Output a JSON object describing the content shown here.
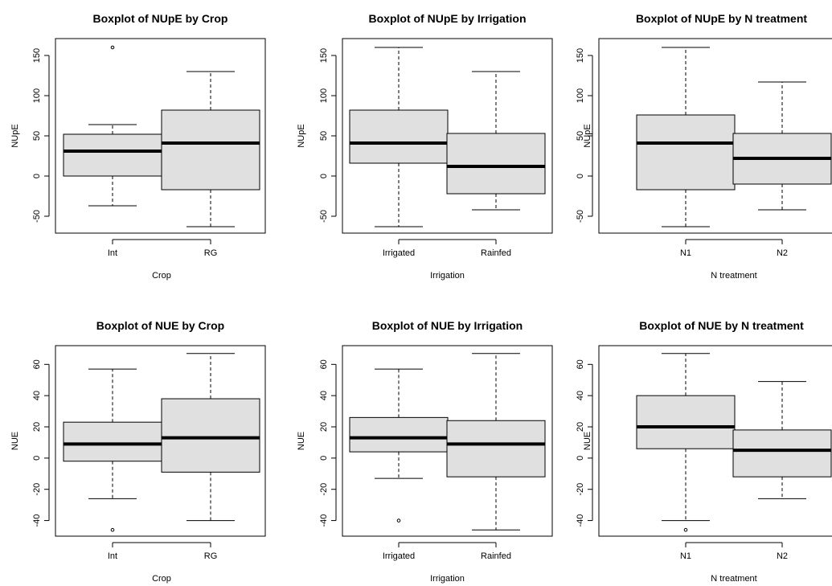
{
  "chart_data": [
    {
      "type": "boxplot",
      "title": "Boxplot of NUpE by Crop",
      "xlabel": "Crop",
      "ylabel": "NUpE",
      "ylim": [
        -71,
        171
      ],
      "yticks": [
        -50,
        0,
        50,
        100,
        150
      ],
      "categories": [
        "Int",
        "RG"
      ],
      "boxes": [
        {
          "lower_whisker": -37,
          "q1": 0,
          "median": 31,
          "q3": 52,
          "upper_whisker": 64,
          "outliers": [
            160
          ]
        },
        {
          "lower_whisker": -63,
          "q1": -17,
          "median": 41,
          "q3": 82,
          "upper_whisker": 130,
          "outliers": []
        }
      ]
    },
    {
      "type": "boxplot",
      "title": "Boxplot of NUpE by Irrigation",
      "xlabel": "Irrigation",
      "ylabel": "NUpE",
      "ylim": [
        -71,
        171
      ],
      "yticks": [
        -50,
        0,
        50,
        100,
        150
      ],
      "categories": [
        "Irrigated",
        "Rainfed"
      ],
      "boxes": [
        {
          "lower_whisker": -63,
          "q1": 16,
          "median": 41,
          "q3": 82,
          "upper_whisker": 160,
          "outliers": []
        },
        {
          "lower_whisker": -42,
          "q1": -22,
          "median": 12,
          "q3": 53,
          "upper_whisker": 130,
          "outliers": []
        }
      ]
    },
    {
      "type": "boxplot",
      "title": "Boxplot of NUpE by N treatment",
      "xlabel": "N treatment",
      "ylabel": "NUpE",
      "ylim": [
        -71,
        171
      ],
      "yticks": [
        -50,
        0,
        50,
        100,
        150
      ],
      "categories": [
        "N1",
        "N2"
      ],
      "boxes": [
        {
          "lower_whisker": -63,
          "q1": -17,
          "median": 41,
          "q3": 76,
          "upper_whisker": 160,
          "outliers": []
        },
        {
          "lower_whisker": -42,
          "q1": -10,
          "median": 22,
          "q3": 53,
          "upper_whisker": 117,
          "outliers": []
        }
      ]
    },
    {
      "type": "boxplot",
      "title": "Boxplot of NUE by Crop",
      "xlabel": "Crop",
      "ylabel": "NUE",
      "ylim": [
        -50,
        72
      ],
      "yticks": [
        -40,
        -20,
        0,
        20,
        40,
        60
      ],
      "categories": [
        "Int",
        "RG"
      ],
      "boxes": [
        {
          "lower_whisker": -26,
          "q1": -2,
          "median": 9,
          "q3": 23,
          "upper_whisker": 57,
          "outliers": [
            -46
          ]
        },
        {
          "lower_whisker": -40,
          "q1": -9,
          "median": 13,
          "q3": 38,
          "upper_whisker": 67,
          "outliers": []
        }
      ]
    },
    {
      "type": "boxplot",
      "title": "Boxplot of NUE by Irrigation",
      "xlabel": "Irrigation",
      "ylabel": "NUE",
      "ylim": [
        -50,
        72
      ],
      "yticks": [
        -40,
        -20,
        0,
        20,
        40,
        60
      ],
      "categories": [
        "Irrigated",
        "Rainfed"
      ],
      "boxes": [
        {
          "lower_whisker": -13,
          "q1": 4,
          "median": 13,
          "q3": 26,
          "upper_whisker": 57,
          "outliers": [
            -40
          ]
        },
        {
          "lower_whisker": -46,
          "q1": -12,
          "median": 9,
          "q3": 24,
          "upper_whisker": 67,
          "outliers": []
        }
      ]
    },
    {
      "type": "boxplot",
      "title": "Boxplot of NUE by N treatment",
      "xlabel": "N treatment",
      "ylabel": "NUE",
      "ylim": [
        -50,
        72
      ],
      "yticks": [
        -40,
        -20,
        0,
        20,
        40,
        60
      ],
      "categories": [
        "N1",
        "N2"
      ],
      "boxes": [
        {
          "lower_whisker": -40,
          "q1": 6,
          "median": 20,
          "q3": 40,
          "upper_whisker": 67,
          "outliers": [
            -46
          ]
        },
        {
          "lower_whisker": -26,
          "q1": -12,
          "median": 5,
          "q3": 18,
          "upper_whisker": 49,
          "outliers": []
        }
      ]
    }
  ]
}
